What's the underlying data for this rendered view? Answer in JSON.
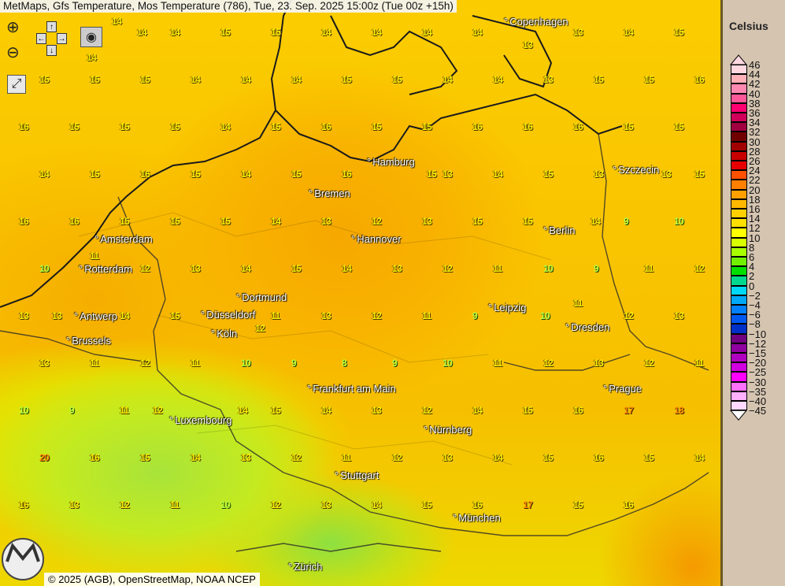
{
  "title": "MetMaps, Gfs Temperature, Mos Temperature (786), Tue, 23. Sep. 2025 15:00z (Tue 00z +15h)",
  "controls": {
    "zoom_in": "zoom-in",
    "zoom_out": "zoom-out",
    "pan": "pan",
    "screenshot": "camera",
    "fullscreen": "fullscreen",
    "arrows": {
      "up": "↑",
      "down": "↓",
      "left": "←",
      "right": "→"
    }
  },
  "cities": [
    "Copenhagen",
    "Szczecin",
    "Hamburg",
    "Bremen",
    "Hannover",
    "Berlin",
    "Amsterdam",
    "Rotterdam",
    "Antwerp",
    "Brussels",
    "Dortmund",
    "Düsseldorf",
    "Köln",
    "Leipzig",
    "Dresden",
    "Frankfurt am Main",
    "Luxembourg",
    "Nürnberg",
    "Prague",
    "Stuttgart",
    "München",
    "Zürich"
  ],
  "stations": [
    14,
    14,
    14,
    14,
    15,
    15,
    14,
    14,
    14,
    14,
    13,
    13,
    14,
    15,
    15,
    15,
    15,
    14,
    14,
    14,
    15,
    15,
    14,
    14,
    13,
    15,
    15,
    16,
    16,
    15,
    15,
    15,
    14,
    15,
    16,
    15,
    15,
    16,
    16,
    16,
    15,
    15,
    14,
    15,
    16,
    15,
    14,
    15,
    16,
    15,
    13,
    14,
    15,
    13,
    13,
    15,
    16,
    16,
    15,
    15,
    15,
    14,
    13,
    12,
    13,
    15,
    15,
    14,
    9,
    10,
    10,
    11,
    12,
    13,
    14,
    15,
    14,
    13,
    12,
    11,
    10,
    9,
    11,
    12,
    13,
    13,
    14,
    15,
    12,
    11,
    13,
    12,
    11,
    9,
    10,
    11,
    12,
    13,
    13,
    11,
    12,
    11,
    10,
    9,
    8,
    9,
    10,
    11,
    12,
    13,
    12,
    11,
    10,
    9,
    11,
    12,
    14,
    15,
    14,
    13,
    12,
    14,
    15,
    16,
    17,
    18,
    20,
    16,
    15,
    14,
    13,
    12,
    11,
    12,
    13,
    14,
    15,
    16,
    15,
    14,
    16,
    13,
    12,
    11,
    10,
    12,
    13,
    14,
    15,
    16,
    17,
    15,
    16
  ],
  "legend": {
    "title": "Celsius",
    "labels": [
      "46",
      "44",
      "42",
      "40",
      "38",
      "36",
      "34",
      "32",
      "30",
      "28",
      "26",
      "24",
      "22",
      "20",
      "18",
      "16",
      "14",
      "12",
      "10",
      "8",
      "6",
      "4",
      "2",
      "0",
      "−2",
      "−4",
      "−6",
      "−8",
      "−10",
      "−12",
      "−15",
      "−20",
      "−25",
      "−30",
      "−35",
      "−40",
      "−45"
    ],
    "colors": [
      "#ffd8e0",
      "#ffb0b8",
      "#ff88b0",
      "#ff5898",
      "#ff0070",
      "#d0005a",
      "#a00040",
      "#700000",
      "#a00000",
      "#c80000",
      "#e80000",
      "#ff5000",
      "#ff8000",
      "#ffa000",
      "#ffb800",
      "#ffd000",
      "#ffe000",
      "#ffff00",
      "#d8ff00",
      "#a8ff00",
      "#70f000",
      "#00e000",
      "#00d890",
      "#00d8f8",
      "#00a8f8",
      "#0080ff",
      "#0058f0",
      "#0030c8",
      "#700080",
      "#9000a0",
      "#b000c0",
      "#d000e0",
      "#ff00ff",
      "#ff70ff",
      "#ffb0ff",
      "#ffd8ff"
    ]
  },
  "copyright": "© 2025 (AGB), OpenStreetMap, NOAA NCEP",
  "logo": "METMAPS"
}
